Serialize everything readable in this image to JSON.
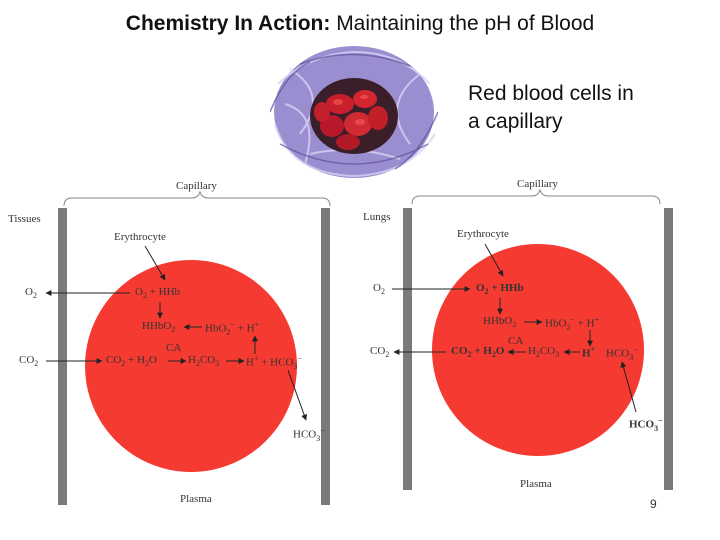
{
  "slide": {
    "title_bold": "Chemistry In Action:",
    "title_rest": " Maintaining the pH of Blood",
    "caption_line1": "Red blood cells in",
    "caption_line2": "a capillary",
    "page_number": "9"
  },
  "colors": {
    "cell": "#f53a32",
    "wall": "#7a7a7a",
    "photo_tissue": "#9b8ed0"
  },
  "left_diagram": {
    "capillary": "Capillary",
    "tissues": "Tissues",
    "erythrocyte": "Erythrocyte",
    "plasma": "Plasma",
    "o2": "O",
    "co2": "CO",
    "o2_hhb": "O",
    "o2_hhb_rest": " + HHb",
    "hhbo2": "HHbO",
    "hbo2_h": "HbO",
    "hbo2_h_rest": " + H",
    "ca": "CA",
    "co2_h2o": "CO",
    "co2_h2o_rest": " + H",
    "co2_h2o_end": "O",
    "h2co3": "H",
    "h2co3_rest": "CO",
    "h_hco3": "H",
    "h_hco3_rest": " + HCO",
    "hco3": "HCO"
  },
  "right_diagram": {
    "capillary": "Capillary",
    "lungs": "Lungs",
    "erythrocyte": "Erythrocyte",
    "plasma": "Plasma",
    "o2": "O",
    "co2": "CO",
    "o2_hhb": "O",
    "o2_hhb_rest": " + HHb",
    "hhbo2": "HHbO",
    "hbo2_h": "HbO",
    "hbo2_h_rest": " + H",
    "ca": "CA",
    "co2_h2o": "CO",
    "co2_h2o_rest": " + H",
    "co2_h2o_end": "O",
    "h2co3": "H",
    "h2co3_rest": "CO",
    "h_plus": "H",
    "hco3_mid": "HCO",
    "hco3": "HCO"
  }
}
